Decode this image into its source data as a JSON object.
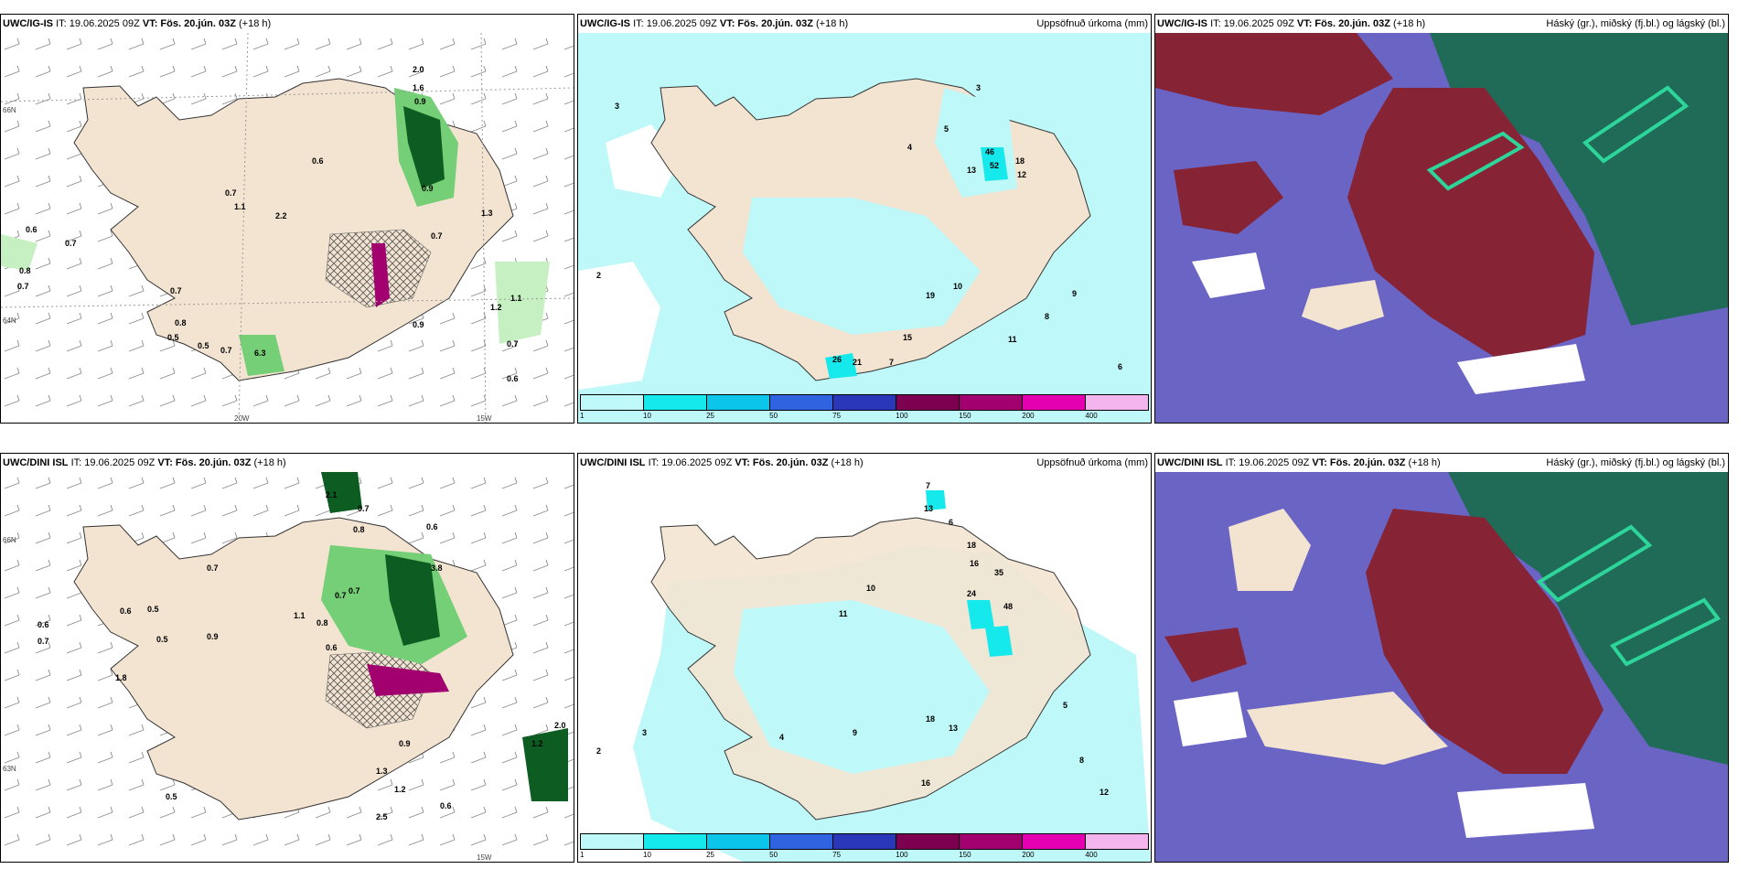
{
  "headers": {
    "p1": {
      "model": "UWC/IG-IS",
      "it": "IT: 19.06.2025 09Z",
      "vt_label": "VT:",
      "vt": "Fös. 20.jún. 03Z",
      "lead": "(+18 h)",
      "right": ""
    },
    "p2": {
      "model": "UWC/IG-IS",
      "it": "IT: 19.06.2025 09Z",
      "vt_label": "VT:",
      "vt": "Fös. 20.jún. 03Z",
      "lead": "(+18 h)",
      "right": "Uppsöfnuð úrkoma (mm)"
    },
    "p3": {
      "model": "UWC/IG-IS",
      "it": "IT: 19.06.2025 09Z",
      "vt_label": "VT:",
      "vt": "Fös. 20.jún. 03Z",
      "lead": "(+18 h)",
      "right": "Háský (gr.), miðský (fj.bl.) og lágský (bl.)"
    },
    "p4": {
      "model": "UWC/DINI ISL",
      "it": "IT: 19.06.2025 09Z",
      "vt_label": "VT:",
      "vt": "Fös. 20.jún. 03Z",
      "lead": "(+18 h)",
      "right": ""
    },
    "p5": {
      "model": "UWC/DINI ISL",
      "it": "IT: 19.06.2025 09Z",
      "vt_label": "VT:",
      "vt": "Fös. 20.jún. 03Z",
      "lead": "(+18 h)",
      "right": "Uppsöfnuð úrkoma (mm)"
    },
    "p6": {
      "model": "UWC/DINI ISL",
      "it": "IT: 19.06.2025 09Z",
      "vt_label": "VT:",
      "vt": "Fös. 20.jún. 03Z",
      "lead": "(+18 h)",
      "right": "Háský (gr.), miðský (fj.bl.) og lágský (bl.)"
    }
  },
  "legend": {
    "ticks": [
      "1",
      "10",
      "25",
      "50",
      "75",
      "100",
      "150",
      "200",
      "400"
    ],
    "colors": [
      "#bff8f8",
      "#16e9ec",
      "#0cc6ea",
      "#2f63e0",
      "#2a37b8",
      "#7d0050",
      "#a3006f",
      "#e400b0",
      "#f4b4ee"
    ]
  },
  "axis": {
    "lat1": "66N",
    "lat2": "64N",
    "lat3": "63N",
    "lon1": "20W",
    "lon2": "15W"
  },
  "colors": {
    "land": "#f3e4d2",
    "snow_green_light": "#c7f0c2",
    "green_mid": "#74cf76",
    "green_dark": "#0d5d22",
    "cloud_high": "#1f6b57",
    "cloud_mid": "#862436",
    "cloud_low": "#6a64c4"
  },
  "p1_labels": [
    "2.0",
    "1.6",
    "0.9",
    "0.9",
    "0.6",
    "0.7",
    "1.1",
    "2.2",
    "0.6",
    "0.7",
    "0.8",
    "0.7",
    "0.7",
    "0.8",
    "0.5",
    "0.5",
    "0.7",
    "6.3",
    "0.9",
    "1.2",
    "1.1",
    "0.7",
    "0.6",
    "1.3",
    "0.7"
  ],
  "p2_labels": [
    "3",
    "5",
    "4",
    "46",
    "52",
    "12",
    "13",
    "18",
    "10",
    "19",
    "11",
    "15",
    "26",
    "21",
    "7",
    "8",
    "9",
    "3",
    "2",
    "6"
  ],
  "p4_labels": [
    "2.1",
    "0.7",
    "0.8",
    "0.6",
    "0.7",
    "0.6",
    "0.5",
    "0.7",
    "1.1",
    "0.8",
    "0.6",
    "0.9",
    "0.7",
    "0.5",
    "0.7",
    "0.6",
    "1.3",
    "0.9",
    "1.2",
    "0.6",
    "0.5",
    "2.0",
    "1.2",
    "2.5",
    "3.8",
    "1.8"
  ],
  "p5_labels": [
    "7",
    "13",
    "6",
    "18",
    "16",
    "35",
    "24",
    "48",
    "10",
    "11",
    "18",
    "13",
    "16",
    "4",
    "3",
    "9",
    "5",
    "2",
    "8",
    "12"
  ]
}
